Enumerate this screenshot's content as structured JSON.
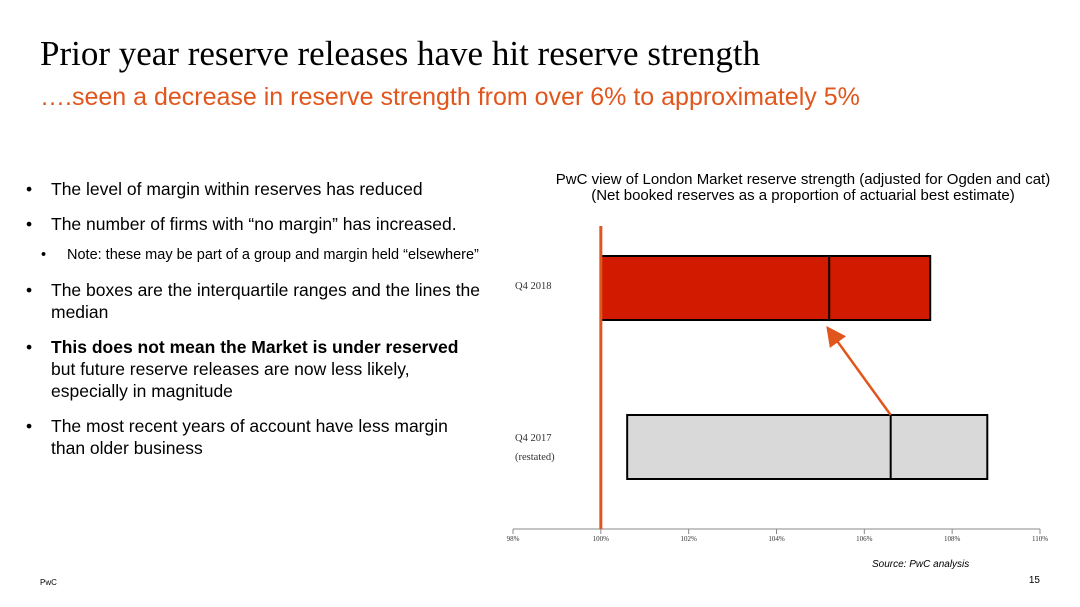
{
  "slide": {
    "title": "Prior year reserve releases have hit reserve strength",
    "subtitle": "….seen a decrease in reserve strength from over 6% to approximately 5%",
    "bullets": [
      "The level of margin within reserves has reduced",
      "The number of firms with “no margin” has increased.",
      "Note: these may be part of a group and margin held “elsewhere”",
      "The boxes are the interquartile ranges and the lines the median",
      "The most recent years of account have less margin than older business"
    ],
    "bullet_bold": "This does not mean the Market is under reserved",
    "bullet_rest": "but future reserve releases are now less likely, especially in magnitude",
    "source": "Source: PwC analysis",
    "footer_left": "PwC",
    "page_number": "15"
  },
  "chart_data": {
    "type": "box",
    "title": "PwC view of London Market reserve strength (adjusted for Ogden and cat)",
    "subtitle": "(Net booked reserves as a proportion of actuarial best estimate)",
    "x_ticks": [
      "98%",
      "100%",
      "102%",
      "104%",
      "106%",
      "108%",
      "110%"
    ],
    "x_range": [
      98,
      110
    ],
    "reference_line": 100,
    "series": [
      {
        "name": "Q4 2018",
        "label_lines": [
          "Q4 2018"
        ],
        "q1": 100,
        "median": 105.2,
        "q3": 107.5,
        "color": "#d21a00"
      },
      {
        "name": "Q4 2017 (restated)",
        "label_lines": [
          "Q4 2017",
          "(restated)"
        ],
        "q1": 100.6,
        "median": 106.6,
        "q3": 108.8,
        "color": "#d9d9d9"
      }
    ],
    "arrow": {
      "from_series": 1,
      "to_series": 0
    },
    "colors": {
      "reference_line": "#e0561c",
      "arrow": "#e0561c"
    }
  }
}
